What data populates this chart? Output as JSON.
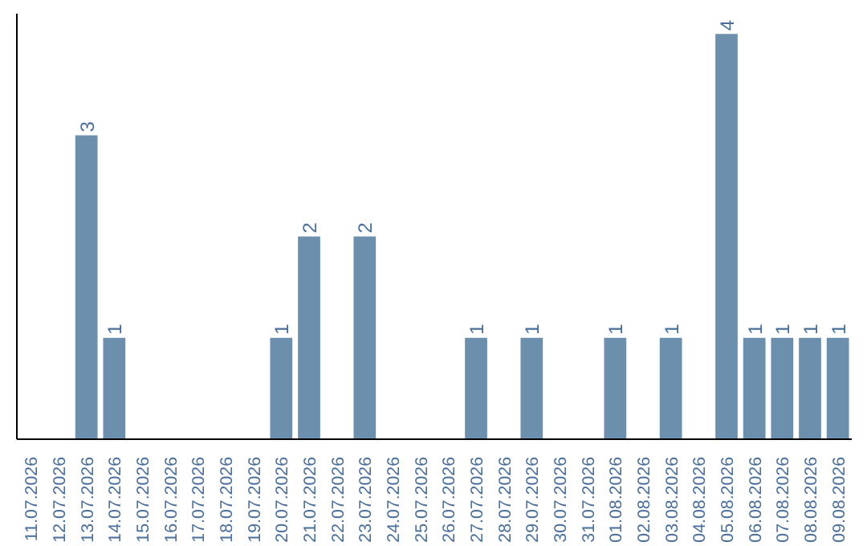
{
  "chart_data": {
    "type": "bar",
    "categories": [
      "11.07.2026",
      "12.07.2026",
      "13.07.2026",
      "14.07.2026",
      "15.07.2026",
      "16.07.2026",
      "17.07.2026",
      "18.07.2026",
      "19.07.2026",
      "20.07.2026",
      "21.07.2026",
      "22.07.2026",
      "23.07.2026",
      "24.07.2026",
      "25.07.2026",
      "26.07.2026",
      "27.07.2026",
      "28.07.2026",
      "29.07.2026",
      "30.07.2026",
      "31.07.2026",
      "01.08.2026",
      "02.08.2026",
      "03.08.2026",
      "04.08.2026",
      "05.08.2026",
      "06.08.2026",
      "07.08.2026",
      "08.08.2026",
      "09.08.2026"
    ],
    "values": [
      null,
      null,
      3,
      1,
      null,
      null,
      null,
      null,
      null,
      1,
      2,
      null,
      2,
      null,
      null,
      null,
      1,
      null,
      1,
      null,
      null,
      1,
      null,
      1,
      null,
      4,
      1,
      1,
      1,
      1
    ],
    "color": "#6d8fae",
    "ylim": [
      0,
      4.2
    ],
    "data_labels": true,
    "tick_labels": "x",
    "grid": false
  }
}
